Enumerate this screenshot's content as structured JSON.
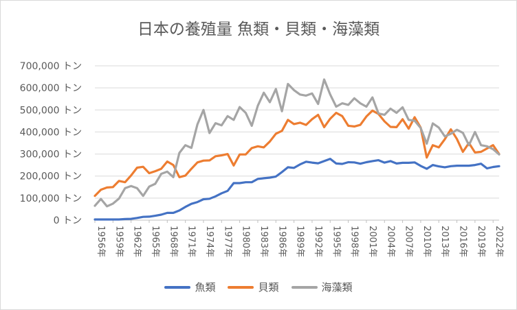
{
  "chart_data": {
    "type": "line",
    "title": "日本の養殖量 魚類・貝類・海藻類",
    "y_unit": "トン",
    "ylim": [
      0,
      700000
    ],
    "y_ticks": [
      0,
      100000,
      200000,
      300000,
      400000,
      500000,
      600000,
      700000
    ],
    "y_tick_labels": [
      "0 トン",
      "100,000 トン",
      "200,000 トン",
      "300,000 トン",
      "400,000 トン",
      "500,000 トン",
      "600,000 トン",
      "700,000 トン"
    ],
    "x_label_suffix": "年",
    "x_tick_labels": [
      "1956年",
      "1959年",
      "1962年",
      "1965年",
      "1968年",
      "1971年",
      "1974年",
      "1977年",
      "1980年",
      "1983年",
      "1986年",
      "1989年",
      "1992年",
      "1995年",
      "1998年",
      "2001年",
      "2004年",
      "2007年",
      "2010年",
      "2013年",
      "2016年",
      "2019年",
      "2022年"
    ],
    "x": [
      1956,
      1957,
      1958,
      1959,
      1960,
      1961,
      1962,
      1963,
      1964,
      1965,
      1966,
      1967,
      1968,
      1969,
      1970,
      1971,
      1972,
      1973,
      1974,
      1975,
      1976,
      1977,
      1978,
      1979,
      1980,
      1981,
      1982,
      1983,
      1984,
      1985,
      1986,
      1987,
      1988,
      1989,
      1990,
      1991,
      1992,
      1993,
      1994,
      1995,
      1996,
      1997,
      1998,
      1999,
      2000,
      2001,
      2002,
      2003,
      2004,
      2005,
      2006,
      2007,
      2008,
      2009,
      2010,
      2011,
      2012,
      2013,
      2014,
      2015,
      2016,
      2017,
      2018,
      2019,
      2020,
      2021,
      2022,
      2023
    ],
    "series": [
      {
        "name": "魚類",
        "color": "#4472c4",
        "values": [
          3000,
          3000,
          3000,
          3000,
          3000,
          5000,
          6000,
          10000,
          15000,
          16000,
          20000,
          25000,
          33000,
          33000,
          44000,
          60000,
          74000,
          82000,
          95000,
          97000,
          108000,
          122000,
          133000,
          168000,
          168000,
          172000,
          172000,
          187000,
          190000,
          193000,
          198000,
          218000,
          240000,
          237000,
          253000,
          265000,
          261000,
          258000,
          268000,
          278000,
          257000,
          255000,
          263000,
          262000,
          256000,
          263000,
          268000,
          272000,
          261000,
          268000,
          257000,
          260000,
          260000,
          262000,
          246000,
          233000,
          250000,
          244000,
          240000,
          245000,
          247000,
          247000,
          247000,
          250000,
          256000,
          235000,
          241000,
          245000
        ]
      },
      {
        "name": "貝類",
        "color": "#ed7d31",
        "values": [
          110000,
          138000,
          148000,
          150000,
          178000,
          172000,
          203000,
          238000,
          242000,
          213000,
          222000,
          233000,
          266000,
          250000,
          195000,
          202000,
          233000,
          262000,
          270000,
          271000,
          290000,
          294000,
          300000,
          248000,
          298000,
          298000,
          327000,
          335000,
          330000,
          357000,
          392000,
          405000,
          455000,
          436000,
          442000,
          432000,
          458000,
          478000,
          422000,
          460000,
          487000,
          472000,
          428000,
          425000,
          432000,
          470000,
          497000,
          482000,
          448000,
          423000,
          422000,
          458000,
          415000,
          467000,
          420000,
          284000,
          340000,
          330000,
          367000,
          412000,
          368000,
          310000,
          350000,
          307000,
          310000,
          325000,
          340000,
          300000
        ]
      },
      {
        "name": "海藻類",
        "color": "#a5a5a5",
        "values": [
          65000,
          96000,
          63000,
          75000,
          98000,
          145000,
          155000,
          145000,
          110000,
          152000,
          165000,
          210000,
          220000,
          195000,
          305000,
          340000,
          328000,
          435000,
          500000,
          395000,
          440000,
          430000,
          472000,
          455000,
          513000,
          487000,
          428000,
          519000,
          578000,
          535000,
          595000,
          494000,
          618000,
          590000,
          570000,
          565000,
          575000,
          527000,
          638000,
          570000,
          515000,
          530000,
          523000,
          553000,
          530000,
          515000,
          557000,
          484000,
          478000,
          506000,
          487000,
          512000,
          455000,
          451000,
          418000,
          347000,
          439000,
          420000,
          380000,
          392000,
          410000,
          396000,
          340000,
          400000,
          340000,
          335000,
          322000,
          298000
        ]
      }
    ],
    "legend_position": "bottom",
    "grid": "horizontal"
  }
}
